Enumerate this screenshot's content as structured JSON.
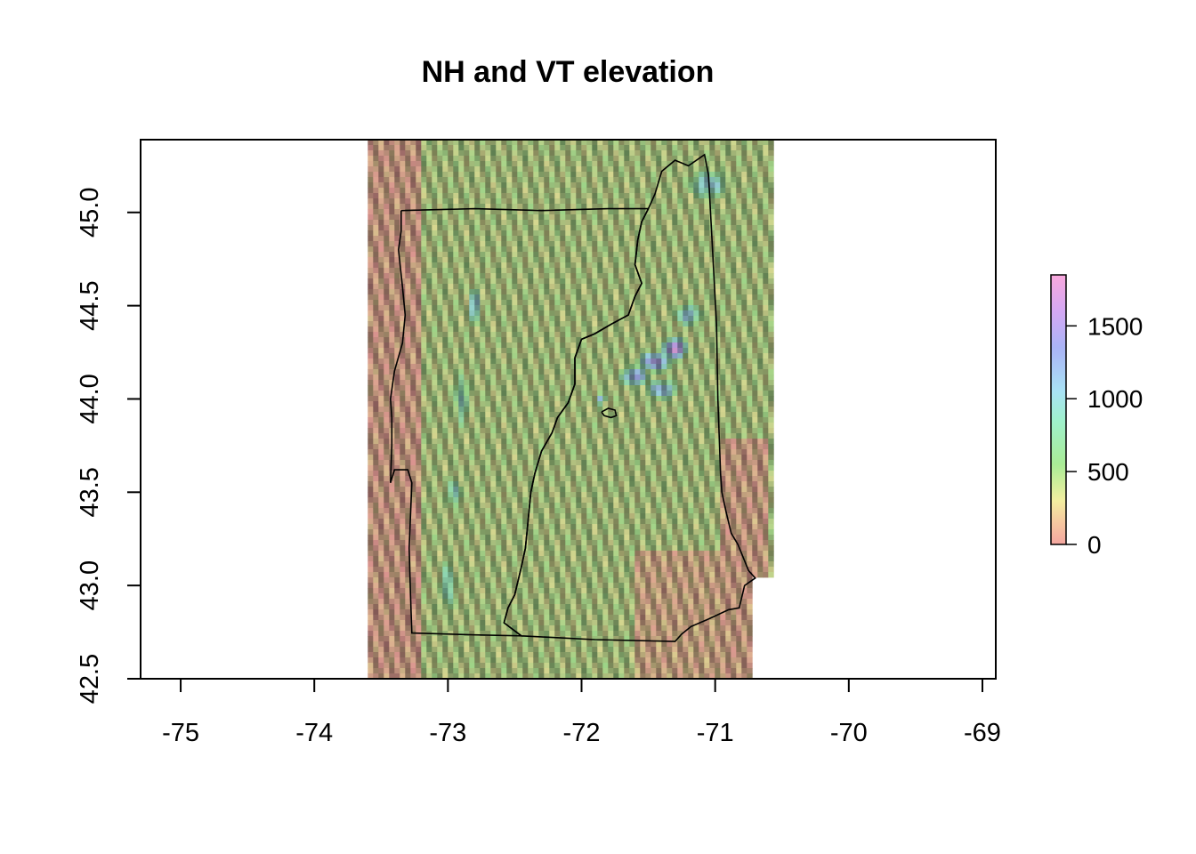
{
  "chart_data": {
    "type": "heatmap",
    "title": "NH and VT elevation",
    "xlabel": "",
    "ylabel": "",
    "xlim": [
      -75.3,
      -68.9
    ],
    "ylim": [
      42.5,
      45.39
    ],
    "x_ticks": [
      {
        "value": -75,
        "label": "-75"
      },
      {
        "value": -74,
        "label": "-74"
      },
      {
        "value": -73,
        "label": "-73"
      },
      {
        "value": -72,
        "label": "-72"
      },
      {
        "value": -71,
        "label": "-71"
      },
      {
        "value": -70,
        "label": "-70"
      },
      {
        "value": -69,
        "label": "-69"
      }
    ],
    "y_ticks": [
      {
        "value": 42.5,
        "label": "42.5"
      },
      {
        "value": 43.0,
        "label": "43.0"
      },
      {
        "value": 43.5,
        "label": "43.5"
      },
      {
        "value": 44.0,
        "label": "44.0"
      },
      {
        "value": 44.5,
        "label": "44.5"
      },
      {
        "value": 45.0,
        "label": "45.0"
      }
    ],
    "raster_extent": {
      "xmin": -73.6,
      "xmax": -70.6,
      "ymin": 42.5,
      "ymax": 45.39
    },
    "legend": {
      "placement": "right",
      "zlim": [
        0,
        1850
      ],
      "ticks": [
        {
          "value": 0,
          "label": "0"
        },
        {
          "value": 500,
          "label": "500"
        },
        {
          "value": 1000,
          "label": "1000"
        },
        {
          "value": 1500,
          "label": "1500"
        }
      ],
      "color_stops": [
        {
          "value": 0,
          "color": "#f4a6a0"
        },
        {
          "value": 150,
          "color": "#f6c8a0"
        },
        {
          "value": 300,
          "color": "#f3eea0"
        },
        {
          "value": 550,
          "color": "#a9ec96"
        },
        {
          "value": 850,
          "color": "#9ff0cc"
        },
        {
          "value": 1050,
          "color": "#a9e2f5"
        },
        {
          "value": 1350,
          "color": "#aab4f6"
        },
        {
          "value": 1600,
          "color": "#d4a8f4"
        },
        {
          "value": 1850,
          "color": "#f9a8dd"
        }
      ]
    },
    "boundaries": [
      {
        "name": "Vermont",
        "points": [
          [
            -73.35,
            45.01
          ],
          [
            -72.8,
            45.02
          ],
          [
            -72.3,
            45.01
          ],
          [
            -71.8,
            45.02
          ],
          [
            -71.5,
            45.02
          ],
          [
            -71.55,
            44.95
          ],
          [
            -71.58,
            44.85
          ],
          [
            -71.6,
            44.72
          ],
          [
            -71.55,
            44.62
          ],
          [
            -71.6,
            44.55
          ],
          [
            -71.65,
            44.45
          ],
          [
            -71.78,
            44.4
          ],
          [
            -71.9,
            44.35
          ],
          [
            -72.0,
            44.32
          ],
          [
            -72.05,
            44.22
          ],
          [
            -72.05,
            44.08
          ],
          [
            -72.1,
            43.98
          ],
          [
            -72.18,
            43.9
          ],
          [
            -72.22,
            43.82
          ],
          [
            -72.3,
            43.72
          ],
          [
            -72.35,
            43.6
          ],
          [
            -72.38,
            43.5
          ],
          [
            -72.4,
            43.35
          ],
          [
            -72.42,
            43.2
          ],
          [
            -72.45,
            43.1
          ],
          [
            -72.5,
            42.95
          ],
          [
            -72.55,
            42.88
          ],
          [
            -72.58,
            42.8
          ],
          [
            -72.45,
            42.73
          ],
          [
            -72.8,
            42.735
          ],
          [
            -73.27,
            42.745
          ],
          [
            -73.28,
            42.95
          ],
          [
            -73.29,
            43.2
          ],
          [
            -73.27,
            43.55
          ],
          [
            -73.3,
            43.62
          ],
          [
            -73.4,
            43.62
          ],
          [
            -73.43,
            43.55
          ],
          [
            -73.42,
            43.75
          ],
          [
            -73.42,
            43.9
          ],
          [
            -73.43,
            44.0
          ],
          [
            -73.4,
            44.15
          ],
          [
            -73.34,
            44.3
          ],
          [
            -73.32,
            44.45
          ],
          [
            -73.34,
            44.6
          ],
          [
            -73.37,
            44.8
          ],
          [
            -73.35,
            44.9
          ],
          [
            -73.35,
            45.01
          ]
        ]
      },
      {
        "name": "New Hampshire",
        "points": [
          [
            -71.5,
            45.02
          ],
          [
            -71.45,
            45.1
          ],
          [
            -71.4,
            45.22
          ],
          [
            -71.3,
            45.28
          ],
          [
            -71.2,
            45.25
          ],
          [
            -71.08,
            45.31
          ],
          [
            -71.05,
            45.2
          ],
          [
            -71.02,
            44.8
          ],
          [
            -70.99,
            44.4
          ],
          [
            -70.98,
            44.0
          ],
          [
            -70.96,
            43.6
          ],
          [
            -70.95,
            43.5
          ],
          [
            -70.92,
            43.4
          ],
          [
            -70.88,
            43.28
          ],
          [
            -70.83,
            43.22
          ],
          [
            -70.75,
            43.08
          ],
          [
            -70.7,
            43.04
          ],
          [
            -70.78,
            43.0
          ],
          [
            -70.82,
            42.88
          ],
          [
            -70.9,
            42.87
          ],
          [
            -71.05,
            42.82
          ],
          [
            -71.18,
            42.78
          ],
          [
            -71.25,
            42.74
          ],
          [
            -71.3,
            42.7
          ],
          [
            -71.9,
            42.71
          ],
          [
            -72.45,
            42.73
          ],
          [
            -72.58,
            42.8
          ],
          [
            -72.55,
            42.88
          ],
          [
            -72.5,
            42.95
          ],
          [
            -72.45,
            43.1
          ],
          [
            -72.42,
            43.2
          ],
          [
            -72.4,
            43.35
          ],
          [
            -72.38,
            43.5
          ],
          [
            -72.35,
            43.6
          ],
          [
            -72.3,
            43.72
          ],
          [
            -72.22,
            43.82
          ],
          [
            -72.18,
            43.9
          ],
          [
            -72.1,
            43.98
          ],
          [
            -72.05,
            44.08
          ],
          [
            -72.05,
            44.22
          ],
          [
            -72.0,
            44.32
          ],
          [
            -71.9,
            44.35
          ],
          [
            -71.78,
            44.4
          ],
          [
            -71.65,
            44.45
          ],
          [
            -71.6,
            44.55
          ],
          [
            -71.55,
            44.62
          ],
          [
            -71.6,
            44.72
          ],
          [
            -71.58,
            44.85
          ],
          [
            -71.55,
            44.95
          ],
          [
            -71.5,
            45.02
          ]
        ]
      },
      {
        "name": "Lake",
        "points": [
          [
            -71.85,
            43.93
          ],
          [
            -71.8,
            43.95
          ],
          [
            -71.75,
            43.94
          ],
          [
            -71.74,
            43.91
          ],
          [
            -71.78,
            43.9
          ],
          [
            -71.83,
            43.91
          ],
          [
            -71.85,
            43.93
          ]
        ]
      }
    ],
    "relief": {
      "low_zones": [
        {
          "x": [
            -73.6,
            -73.2
          ],
          "y": [
            42.5,
            45.39
          ],
          "elev": 60
        },
        {
          "x": [
            -70.95,
            -70.6
          ],
          "y": [
            42.5,
            43.8
          ],
          "elev": 80
        },
        {
          "x": [
            -71.6,
            -70.95
          ],
          "y": [
            42.5,
            43.2
          ],
          "elev": 120
        }
      ],
      "peaks": [
        {
          "lon": -71.3,
          "lat": 44.27,
          "elev": 1800,
          "rx": 0.08,
          "ry": 0.05
        },
        {
          "lon": -71.45,
          "lat": 44.2,
          "elev": 1450,
          "rx": 0.12,
          "ry": 0.05
        },
        {
          "lon": -71.6,
          "lat": 44.12,
          "elev": 1350,
          "rx": 0.1,
          "ry": 0.05
        },
        {
          "lon": -71.4,
          "lat": 44.05,
          "elev": 1200,
          "rx": 0.12,
          "ry": 0.05
        },
        {
          "lon": -71.2,
          "lat": 44.45,
          "elev": 1100,
          "rx": 0.1,
          "ry": 0.06
        },
        {
          "lon": -71.05,
          "lat": 45.15,
          "elev": 1050,
          "rx": 0.15,
          "ry": 0.08
        },
        {
          "lon": -72.8,
          "lat": 44.5,
          "elev": 1100,
          "rx": 0.05,
          "ry": 0.1
        },
        {
          "lon": -72.9,
          "lat": 44.0,
          "elev": 950,
          "rx": 0.05,
          "ry": 0.15
        },
        {
          "lon": -72.95,
          "lat": 43.5,
          "elev": 1000,
          "rx": 0.05,
          "ry": 0.08
        },
        {
          "lon": -73.0,
          "lat": 43.0,
          "elev": 950,
          "rx": 0.05,
          "ry": 0.15
        },
        {
          "lon": -71.85,
          "lat": 44.0,
          "elev": 1250,
          "rx": 0.03,
          "ry": 0.03
        }
      ]
    }
  }
}
